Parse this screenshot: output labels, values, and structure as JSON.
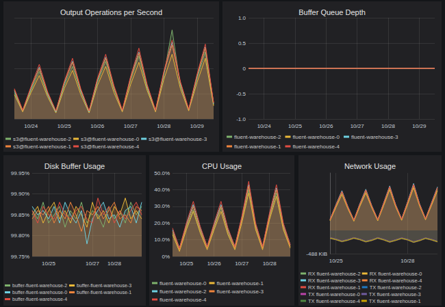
{
  "chart_data": [
    {
      "type": "area",
      "title": "Output Operations per Second",
      "categories": [
        null,
        null,
        "10/24",
        null,
        null,
        null,
        "10/25",
        null,
        null,
        null,
        "10/26",
        null,
        null,
        null,
        "10/27",
        null,
        null,
        null,
        "10/28",
        null,
        null,
        null,
        "10/29",
        null,
        null
      ],
      "ylim": [
        0,
        100
      ],
      "yticks": [
        0,
        25,
        50,
        75,
        100
      ],
      "grid": true,
      "legend": "bottom",
      "tick_labels": "x",
      "series": [
        {
          "name": "s3@fluent-warehouse-2",
          "color": "#7EB26D",
          "values": [
            26,
            8,
            28,
            47,
            24,
            7,
            33,
            52,
            27,
            7,
            36,
            57,
            29,
            8,
            38,
            62,
            30,
            8,
            43,
            88,
            33,
            9,
            40,
            66,
            14
          ]
        },
        {
          "name": "s3@fluent-warehouse-0",
          "color": "#EAB839",
          "values": [
            24,
            7,
            26,
            43,
            22,
            6,
            30,
            48,
            24,
            6,
            33,
            52,
            26,
            7,
            34,
            56,
            28,
            7,
            39,
            64,
            30,
            8,
            36,
            60,
            13
          ]
        },
        {
          "name": "s3@fluent-warehouse-3",
          "color": "#6ED0E0",
          "values": [
            28,
            8,
            30,
            51,
            25,
            7,
            35,
            57,
            28,
            7,
            38,
            61,
            31,
            8,
            41,
            66,
            32,
            8,
            45,
            76,
            35,
            9,
            42,
            71,
            15
          ]
        },
        {
          "name": "s3@fluent-warehouse-1",
          "color": "#EF843C",
          "values": [
            29,
            8,
            31,
            50,
            26,
            8,
            36,
            56,
            29,
            8,
            39,
            60,
            31,
            8,
            40,
            65,
            33,
            8,
            46,
            73,
            36,
            9,
            43,
            70,
            16
          ]
        },
        {
          "name": "s3@fluent-warehouse-4",
          "color": "#E24D42",
          "values": [
            30,
            9,
            32,
            54,
            27,
            8,
            37,
            60,
            30,
            8,
            40,
            64,
            33,
            9,
            42,
            70,
            34,
            9,
            47,
            78,
            37,
            10,
            44,
            74,
            16
          ]
        }
      ]
    },
    {
      "type": "line",
      "title": "Buffer Queue Depth",
      "categories": [
        null,
        null,
        "10/24",
        null,
        null,
        null,
        "10/25",
        null,
        null,
        null,
        "10/26",
        null,
        null,
        null,
        "10/27",
        null,
        null,
        null,
        "10/28",
        null,
        null,
        null,
        "10/29",
        null,
        null
      ],
      "ylim": [
        -1,
        1
      ],
      "yticks": [
        {
          "value": -1,
          "label": "-1.0"
        },
        -0.5,
        0,
        0.5,
        {
          "value": 1,
          "label": "1.0"
        }
      ],
      "grid": true,
      "legend": "bottom",
      "series": [
        {
          "name": "fluent-warehouse-2",
          "color": "#7EB26D",
          "values": [
            0,
            0,
            0,
            0,
            0,
            0,
            0,
            0,
            0,
            0,
            0,
            0,
            0,
            0,
            0,
            0,
            0,
            0,
            0,
            0,
            0,
            0,
            0,
            0,
            0
          ]
        },
        {
          "name": "fluent-warehouse-0",
          "color": "#EAB839",
          "values": [
            0,
            0,
            0,
            0,
            0,
            0,
            0,
            0,
            0,
            0,
            0,
            0,
            0,
            0,
            0,
            0,
            0,
            0,
            0,
            0,
            0,
            0,
            0,
            0,
            0
          ]
        },
        {
          "name": "fluent-warehouse-3",
          "color": "#6ED0E0",
          "values": [
            0,
            0,
            0,
            0,
            0,
            0,
            0,
            0,
            0,
            0,
            0,
            0,
            0,
            0,
            0,
            0,
            0,
            0,
            0,
            0,
            0,
            0,
            0,
            0,
            0
          ]
        },
        {
          "name": "fluent-warehouse-1",
          "color": "#EF843C",
          "values": [
            0,
            0,
            0,
            0,
            0,
            0,
            0,
            0,
            0,
            0,
            0,
            0,
            0,
            0,
            0,
            0,
            0,
            0,
            0,
            0,
            0,
            0,
            0,
            0,
            0
          ]
        },
        {
          "name": "fluent-warehouse-4",
          "color": "#E24D42",
          "values": [
            0,
            0,
            0,
            0,
            0,
            0,
            0,
            0,
            0,
            0,
            0,
            0,
            0,
            0,
            0,
            0,
            0,
            0,
            0,
            0,
            0,
            0,
            0,
            0,
            0
          ]
        }
      ]
    },
    {
      "type": "area",
      "title": "Disk Buffer Usage",
      "categories": [
        null,
        null,
        null,
        "10/25",
        null,
        null,
        null,
        null,
        null,
        null,
        null,
        "10/27",
        null,
        null,
        null,
        "10/28",
        null,
        null,
        null,
        null,
        null
      ],
      "ylim": [
        99.75,
        99.95
      ],
      "yticks": [
        {
          "value": 99.75,
          "label": "99.75%"
        },
        {
          "value": 99.8,
          "label": "99.80%"
        },
        {
          "value": 99.85,
          "label": "99.85%"
        },
        {
          "value": 99.9,
          "label": "99.90%"
        },
        {
          "value": 99.95,
          "label": "99.95%"
        }
      ],
      "grid": true,
      "legend": "bottom",
      "series": [
        {
          "name": "buffer-fluent-warehouse-2",
          "color": "#7EB26D",
          "values": [
            99.86,
            99.84,
            99.88,
            99.83,
            99.85,
            99.87,
            99.82,
            99.86,
            99.84,
            99.88,
            99.83,
            99.86,
            99.85,
            99.82,
            99.87,
            99.84,
            99.86,
            99.83,
            99.88,
            99.85,
            99.87
          ]
        },
        {
          "name": "buffer-fluent-warehouse-3",
          "color": "#EAB839",
          "values": [
            99.85,
            99.87,
            99.83,
            99.86,
            99.88,
            99.84,
            99.86,
            99.83,
            99.87,
            99.85,
            99.82,
            99.88,
            99.84,
            99.86,
            99.83,
            99.87,
            99.85,
            99.89,
            99.84,
            99.86,
            99.84
          ]
        },
        {
          "name": "buffer-fluent-warehouse-0",
          "color": "#6ED0E0",
          "values": [
            99.87,
            99.85,
            99.86,
            99.84,
            99.87,
            99.83,
            99.88,
            99.85,
            99.83,
            99.86,
            99.78,
            99.84,
            99.86,
            99.88,
            99.84,
            99.85,
            99.82,
            99.86,
            99.87,
            99.83,
            99.88
          ]
        },
        {
          "name": "buffer-fluent-warehouse-1",
          "color": "#EF843C",
          "values": [
            99.84,
            99.86,
            99.85,
            99.87,
            99.83,
            99.86,
            99.84,
            99.88,
            99.85,
            99.81,
            99.86,
            99.85,
            99.87,
            99.84,
            99.86,
            99.88,
            99.84,
            99.85,
            99.83,
            99.87,
            99.86
          ]
        },
        {
          "name": "buffer-fluent-warehouse-4",
          "color": "#E24D42",
          "values": [
            99.86,
            99.83,
            99.87,
            99.85,
            99.84,
            99.88,
            99.85,
            99.84,
            99.86,
            99.87,
            99.84,
            99.83,
            99.89,
            99.85,
            99.87,
            99.83,
            99.86,
            99.84,
            99.86,
            99.88,
            99.85
          ]
        }
      ]
    },
    {
      "type": "area",
      "title": "CPU Usage",
      "categories": [
        null,
        null,
        "10/25",
        null,
        null,
        null,
        "10/26",
        null,
        null,
        null,
        "10/27",
        null,
        null,
        null,
        "10/28",
        null,
        null,
        null
      ],
      "ylim": [
        0,
        50
      ],
      "yticks": [
        {
          "value": 0,
          "label": "0%"
        },
        {
          "value": 10,
          "label": "10.0%"
        },
        {
          "value": 20,
          "label": "20.0%"
        },
        {
          "value": 30,
          "label": "30.0%"
        },
        {
          "value": 40,
          "label": "40.0%"
        },
        {
          "value": 50,
          "label": "50.0%"
        }
      ],
      "grid": true,
      "legend": "bottom",
      "series": [
        {
          "name": "fluent-warehouse-0",
          "color": "#7EB26D",
          "values": [
            14,
            4,
            17,
            28,
            15,
            5,
            17,
            29,
            14,
            5,
            21,
            40,
            17,
            5,
            23,
            38,
            17,
            6
          ]
        },
        {
          "name": "fluent-warehouse-1",
          "color": "#EAB839",
          "values": [
            13,
            3,
            16,
            27,
            14,
            4,
            16,
            27,
            13,
            4,
            20,
            38,
            16,
            4,
            22,
            36,
            16,
            5
          ]
        },
        {
          "name": "fluent-warehouse-2",
          "color": "#6ED0E0",
          "values": [
            16,
            5,
            19,
            31,
            17,
            6,
            19,
            31,
            16,
            6,
            23,
            43,
            19,
            6,
            25,
            41,
            19,
            7
          ]
        },
        {
          "name": "fluent-warehouse-3",
          "color": "#EF843C",
          "values": [
            15,
            4,
            18,
            30,
            16,
            5,
            18,
            30,
            15,
            5,
            22,
            42,
            18,
            5,
            24,
            40,
            18,
            6
          ]
        },
        {
          "name": "fluent-warehouse-4",
          "color": "#E24D42",
          "values": [
            17,
            5,
            20,
            33,
            18,
            6,
            20,
            33,
            17,
            6,
            24,
            45,
            20,
            6,
            26,
            43,
            20,
            7
          ]
        }
      ]
    },
    {
      "type": "area",
      "title": "Network Usage",
      "categories": [
        null,
        "10/25",
        null,
        null,
        null,
        null,
        null,
        null,
        null,
        null,
        null,
        null,
        null,
        "10/28",
        null,
        null,
        null,
        null,
        null
      ],
      "ylim": [
        -488,
        1200
      ],
      "yticks": [
        {
          "value": -488,
          "label": "-488 KiB"
        }
      ],
      "grid": true,
      "legend": "bottom",
      "series": [
        {
          "name": "RX fluent-warehouse-2",
          "color": "#7EB26D",
          "values": [
            210,
            500,
            780,
            470,
            200,
            520,
            810,
            490,
            210,
            540,
            880,
            510,
            220,
            560,
            920,
            530,
            230,
            540,
            860
          ]
        },
        {
          "name": "RX fluent-warehouse-0",
          "color": "#EAB839",
          "values": [
            200,
            480,
            750,
            450,
            190,
            500,
            780,
            470,
            200,
            520,
            850,
            490,
            210,
            540,
            890,
            510,
            220,
            520,
            830
          ]
        },
        {
          "name": "RX fluent-warehouse-3",
          "color": "#6ED0E0",
          "values": [
            230,
            540,
            830,
            500,
            220,
            560,
            860,
            520,
            230,
            580,
            930,
            540,
            240,
            600,
            980,
            560,
            250,
            580,
            910
          ]
        },
        {
          "name": "RX fluent-warehouse-4",
          "color": "#EF843C",
          "values": [
            220,
            520,
            800,
            480,
            210,
            540,
            830,
            500,
            220,
            560,
            900,
            520,
            230,
            580,
            940,
            540,
            240,
            560,
            880
          ]
        },
        {
          "name": "RX fluent-warehouse-1",
          "color": "#E24D42",
          "values": [
            225,
            530,
            815,
            490,
            215,
            550,
            845,
            510,
            225,
            570,
            915,
            530,
            235,
            590,
            960,
            550,
            245,
            570,
            895
          ]
        },
        {
          "name": "TX fluent-warehouse-2",
          "color": "#1F78C1",
          "values": [
            -160,
            -190,
            -230,
            -200,
            -160,
            -190,
            -235,
            -205,
            -160,
            -195,
            -240,
            -205,
            -165,
            -195,
            -245,
            -210,
            -165,
            -195,
            -235
          ]
        },
        {
          "name": "TX fluent-warehouse-0",
          "color": "#BA43A9",
          "values": [
            -150,
            -180,
            -220,
            -190,
            -150,
            -180,
            -225,
            -195,
            -150,
            -185,
            -230,
            -195,
            -155,
            -185,
            -235,
            -200,
            -155,
            -185,
            -225
          ]
        },
        {
          "name": "TX fluent-warehouse-3",
          "color": "#705DA0",
          "values": [
            -170,
            -200,
            -240,
            -210,
            -170,
            -200,
            -245,
            -215,
            -170,
            -205,
            -250,
            -215,
            -175,
            -205,
            -255,
            -220,
            -175,
            -205,
            -245
          ]
        },
        {
          "name": "TX fluent-warehouse-4",
          "color": "#508642",
          "values": [
            -155,
            -185,
            -225,
            -195,
            -155,
            -185,
            -230,
            -200,
            -155,
            -190,
            -235,
            -200,
            -160,
            -190,
            -240,
            -205,
            -160,
            -190,
            -230
          ]
        },
        {
          "name": "TX fluent-warehouse-1",
          "color": "#CCA300",
          "values": [
            -165,
            -195,
            -235,
            -205,
            -165,
            -195,
            -240,
            -210,
            -165,
            -200,
            -245,
            -210,
            -170,
            -200,
            -250,
            -215,
            -170,
            -200,
            -240
          ]
        }
      ]
    }
  ]
}
